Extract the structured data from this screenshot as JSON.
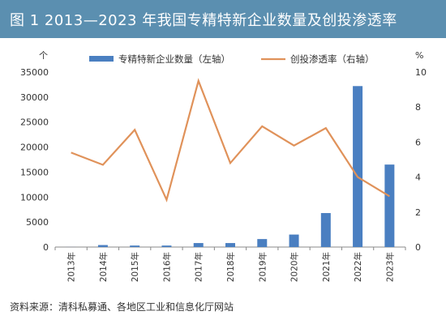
{
  "header": {
    "title": "图 1   2013—2023 年我国专精特新企业数量及创投渗透率"
  },
  "source": "资料来源：清科私募通、各地区工业和信息化厅网站",
  "colors": {
    "header_bg": "#5b8fb0",
    "bar": "#4a7fc1",
    "line": "#e0925a",
    "axis_text": "#333333"
  },
  "chart_data": {
    "type": "bar+line",
    "title": "",
    "categories": [
      "2013年",
      "2014年",
      "2015年",
      "2016年",
      "2017年",
      "2018年",
      "2019年",
      "2020年",
      "2021年",
      "2022年",
      "2023年"
    ],
    "left_axis_unit": "个",
    "right_axis_unit": "%",
    "y_left_ticks": [
      "0",
      "5000",
      "10000",
      "15000",
      "20000",
      "25000",
      "30000",
      "35000"
    ],
    "y_right_ticks": [
      "0",
      "2",
      "4",
      "6",
      "8",
      "10"
    ],
    "ylim_left": [
      0,
      35000
    ],
    "ylim_right": [
      0,
      10
    ],
    "series": [
      {
        "name": "专精特新企业数量（左轴）",
        "type": "bar",
        "axis": "left",
        "values": [
          10,
          400,
          300,
          300,
          800,
          800,
          1600,
          2500,
          6800,
          32200,
          16500
        ]
      },
      {
        "name": "创投渗透率（右轴）",
        "type": "line",
        "axis": "right",
        "values": [
          5.4,
          4.7,
          6.7,
          2.7,
          9.5,
          4.8,
          6.9,
          5.8,
          6.8,
          4.0,
          2.9
        ]
      }
    ],
    "grid": false,
    "legend": "top"
  }
}
